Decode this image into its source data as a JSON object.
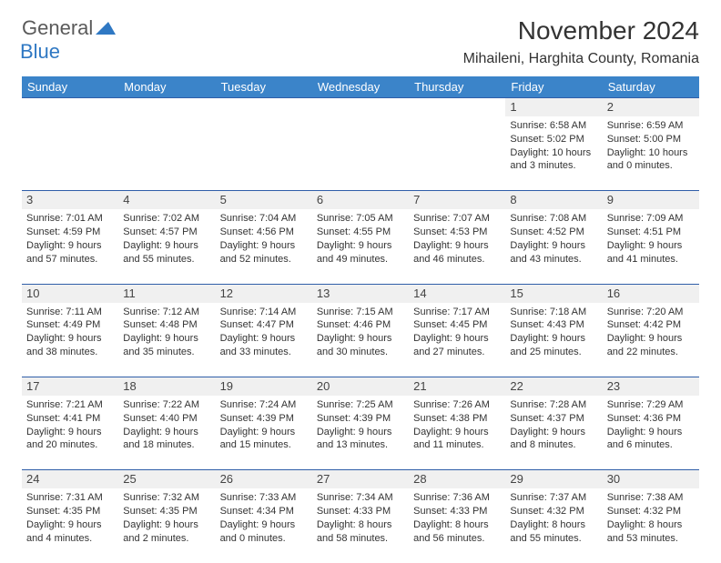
{
  "logo": {
    "general": "General",
    "blue": "Blue"
  },
  "header": {
    "month_title": "November 2024",
    "location": "Mihaileni, Harghita County, Romania"
  },
  "day_headers": [
    "Sunday",
    "Monday",
    "Tuesday",
    "Wednesday",
    "Thursday",
    "Friday",
    "Saturday"
  ],
  "colors": {
    "header_bg": "#3b84c9",
    "header_text": "#ffffff",
    "daynum_bg": "#f0f0f0",
    "row_divider": "#2f5ea8",
    "text": "#333333",
    "logo_general": "#5a5a5a",
    "logo_blue": "#2f78c3"
  },
  "typography": {
    "month_title_fontsize": 28,
    "location_fontsize": 16,
    "day_header_fontsize": 13,
    "cell_fontsize": 11,
    "daynum_fontsize": 13
  },
  "layout": {
    "columns": 7,
    "rows": 5,
    "first_day_column": 5
  },
  "days": [
    {
      "n": 1,
      "sunrise": "6:58 AM",
      "sunset": "5:02 PM",
      "daylight": "10 hours and 3 minutes."
    },
    {
      "n": 2,
      "sunrise": "6:59 AM",
      "sunset": "5:00 PM",
      "daylight": "10 hours and 0 minutes."
    },
    {
      "n": 3,
      "sunrise": "7:01 AM",
      "sunset": "4:59 PM",
      "daylight": "9 hours and 57 minutes."
    },
    {
      "n": 4,
      "sunrise": "7:02 AM",
      "sunset": "4:57 PM",
      "daylight": "9 hours and 55 minutes."
    },
    {
      "n": 5,
      "sunrise": "7:04 AM",
      "sunset": "4:56 PM",
      "daylight": "9 hours and 52 minutes."
    },
    {
      "n": 6,
      "sunrise": "7:05 AM",
      "sunset": "4:55 PM",
      "daylight": "9 hours and 49 minutes."
    },
    {
      "n": 7,
      "sunrise": "7:07 AM",
      "sunset": "4:53 PM",
      "daylight": "9 hours and 46 minutes."
    },
    {
      "n": 8,
      "sunrise": "7:08 AM",
      "sunset": "4:52 PM",
      "daylight": "9 hours and 43 minutes."
    },
    {
      "n": 9,
      "sunrise": "7:09 AM",
      "sunset": "4:51 PM",
      "daylight": "9 hours and 41 minutes."
    },
    {
      "n": 10,
      "sunrise": "7:11 AM",
      "sunset": "4:49 PM",
      "daylight": "9 hours and 38 minutes."
    },
    {
      "n": 11,
      "sunrise": "7:12 AM",
      "sunset": "4:48 PM",
      "daylight": "9 hours and 35 minutes."
    },
    {
      "n": 12,
      "sunrise": "7:14 AM",
      "sunset": "4:47 PM",
      "daylight": "9 hours and 33 minutes."
    },
    {
      "n": 13,
      "sunrise": "7:15 AM",
      "sunset": "4:46 PM",
      "daylight": "9 hours and 30 minutes."
    },
    {
      "n": 14,
      "sunrise": "7:17 AM",
      "sunset": "4:45 PM",
      "daylight": "9 hours and 27 minutes."
    },
    {
      "n": 15,
      "sunrise": "7:18 AM",
      "sunset": "4:43 PM",
      "daylight": "9 hours and 25 minutes."
    },
    {
      "n": 16,
      "sunrise": "7:20 AM",
      "sunset": "4:42 PM",
      "daylight": "9 hours and 22 minutes."
    },
    {
      "n": 17,
      "sunrise": "7:21 AM",
      "sunset": "4:41 PM",
      "daylight": "9 hours and 20 minutes."
    },
    {
      "n": 18,
      "sunrise": "7:22 AM",
      "sunset": "4:40 PM",
      "daylight": "9 hours and 18 minutes."
    },
    {
      "n": 19,
      "sunrise": "7:24 AM",
      "sunset": "4:39 PM",
      "daylight": "9 hours and 15 minutes."
    },
    {
      "n": 20,
      "sunrise": "7:25 AM",
      "sunset": "4:39 PM",
      "daylight": "9 hours and 13 minutes."
    },
    {
      "n": 21,
      "sunrise": "7:26 AM",
      "sunset": "4:38 PM",
      "daylight": "9 hours and 11 minutes."
    },
    {
      "n": 22,
      "sunrise": "7:28 AM",
      "sunset": "4:37 PM",
      "daylight": "9 hours and 8 minutes."
    },
    {
      "n": 23,
      "sunrise": "7:29 AM",
      "sunset": "4:36 PM",
      "daylight": "9 hours and 6 minutes."
    },
    {
      "n": 24,
      "sunrise": "7:31 AM",
      "sunset": "4:35 PM",
      "daylight": "9 hours and 4 minutes."
    },
    {
      "n": 25,
      "sunrise": "7:32 AM",
      "sunset": "4:35 PM",
      "daylight": "9 hours and 2 minutes."
    },
    {
      "n": 26,
      "sunrise": "7:33 AM",
      "sunset": "4:34 PM",
      "daylight": "9 hours and 0 minutes."
    },
    {
      "n": 27,
      "sunrise": "7:34 AM",
      "sunset": "4:33 PM",
      "daylight": "8 hours and 58 minutes."
    },
    {
      "n": 28,
      "sunrise": "7:36 AM",
      "sunset": "4:33 PM",
      "daylight": "8 hours and 56 minutes."
    },
    {
      "n": 29,
      "sunrise": "7:37 AM",
      "sunset": "4:32 PM",
      "daylight": "8 hours and 55 minutes."
    },
    {
      "n": 30,
      "sunrise": "7:38 AM",
      "sunset": "4:32 PM",
      "daylight": "8 hours and 53 minutes."
    }
  ],
  "labels": {
    "sunrise": "Sunrise:",
    "sunset": "Sunset:",
    "daylight": "Daylight:"
  }
}
